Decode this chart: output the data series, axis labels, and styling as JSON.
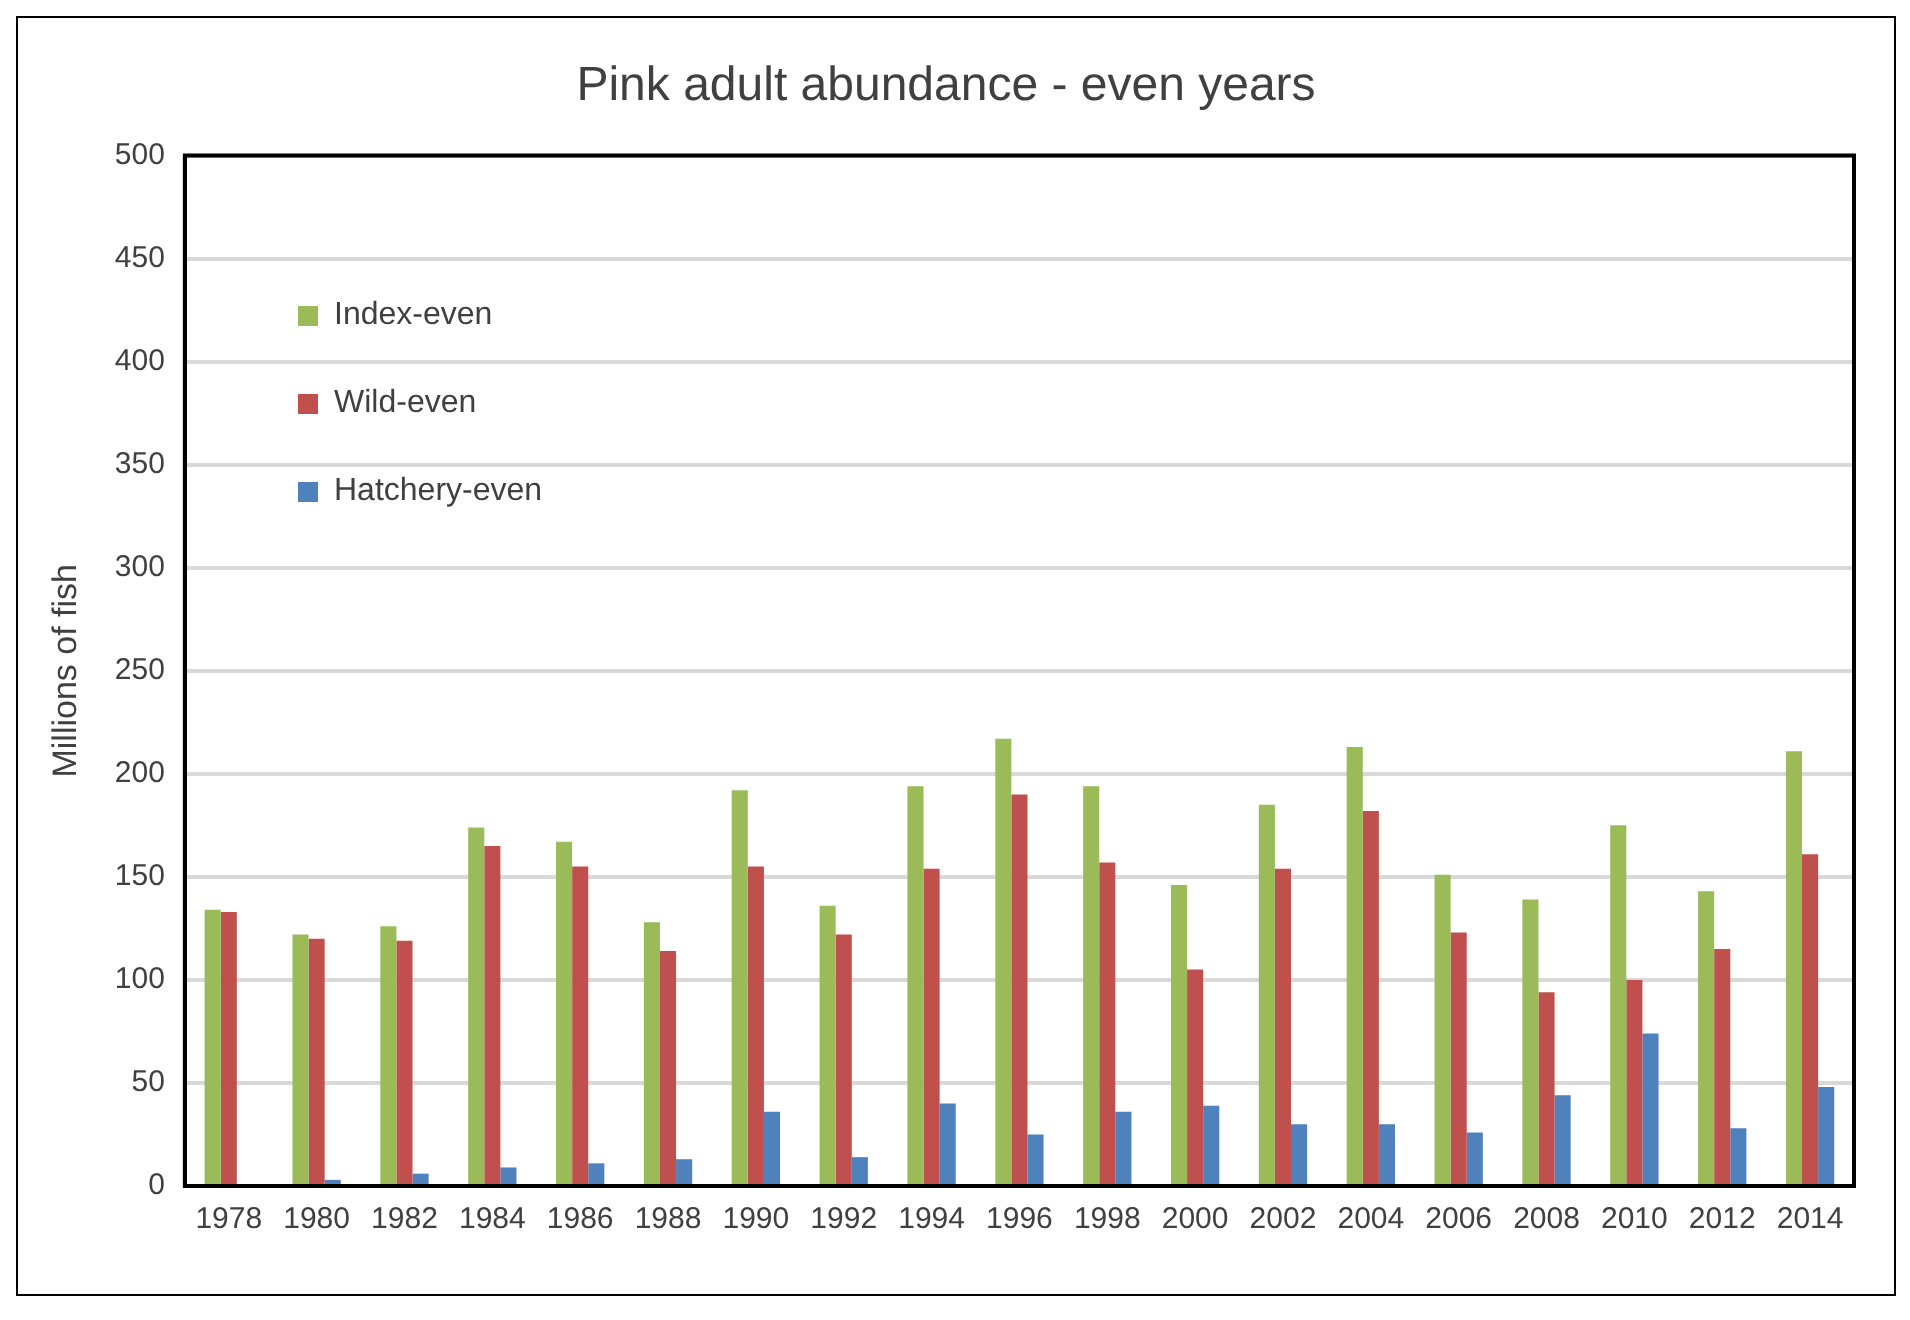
{
  "chart_data": {
    "type": "bar",
    "title": "Pink adult abundance - even years",
    "ylabel": "Millions of fish",
    "categories": [
      "1978",
      "1980",
      "1982",
      "1984",
      "1986",
      "1988",
      "1990",
      "1992",
      "1994",
      "1996",
      "1998",
      "2000",
      "2002",
      "2004",
      "2006",
      "2008",
      "2010",
      "2012",
      "2014"
    ],
    "series": [
      {
        "name": "Index-even",
        "color": "#9bbb59",
        "values": [
          134,
          122,
          126,
          174,
          167,
          128,
          192,
          136,
          194,
          217,
          194,
          146,
          185,
          213,
          151,
          139,
          175,
          143,
          211
        ]
      },
      {
        "name": "Wild-even",
        "color": "#c0504d",
        "values": [
          133,
          120,
          119,
          165,
          155,
          114,
          155,
          122,
          154,
          190,
          157,
          105,
          154,
          182,
          123,
          94,
          100,
          115,
          161
        ]
      },
      {
        "name": "Hatchery-even",
        "color": "#4f81bd",
        "values": [
          0,
          3,
          6,
          9,
          11,
          13,
          36,
          14,
          40,
          25,
          36,
          39,
          30,
          30,
          26,
          44,
          74,
          28,
          48
        ]
      }
    ],
    "ylim": [
      0,
      500
    ],
    "yticks": [
      0,
      50,
      100,
      150,
      200,
      250,
      300,
      350,
      400,
      450,
      500
    ],
    "grid": "y",
    "legend": "top left"
  }
}
